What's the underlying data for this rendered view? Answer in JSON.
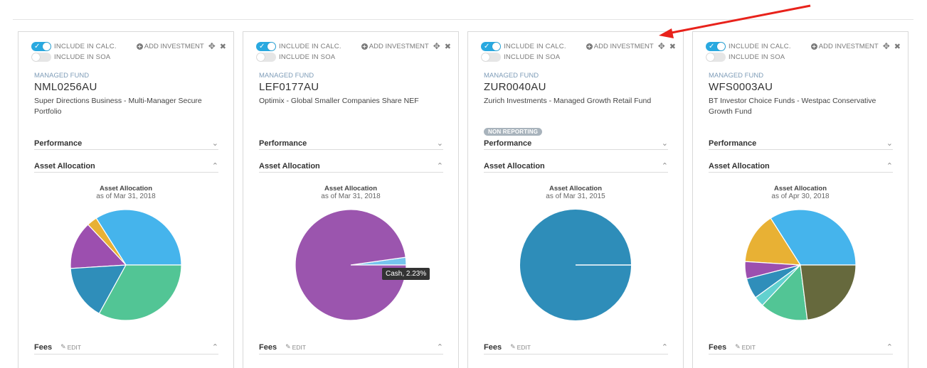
{
  "labels": {
    "include_calc": "INCLUDE IN CALC.",
    "include_soa": "INCLUDE IN SOA",
    "add_investment": "ADD INVESTMENT",
    "performance": "Performance",
    "asset_allocation": "Asset Allocation",
    "fees": "Fees",
    "edit": "EDIT",
    "chart_title": "Asset Allocation"
  },
  "icons": {
    "add": "plus-circle-icon",
    "move": "move-icon",
    "close": "close-icon",
    "chevron_down": "chevron-down-icon",
    "chevron_up": "chevron-up-icon",
    "pencil": "pencil-icon"
  },
  "colors": {
    "toggle_on": "#29a9e0",
    "toggle_off": "#e6e6e6",
    "annotation_arrow": "#e8221b"
  },
  "cards": [
    {
      "include_calc": true,
      "include_soa": false,
      "fund_type": "MANAGED FUND",
      "code": "NML0256AU",
      "name": "Super Directions Business - Multi-Manager Secure Portfolio",
      "badge": "",
      "performance_expanded": false,
      "allocation_expanded": true,
      "as_of": "as of Mar 31, 2018",
      "slices": [
        {
          "value": 34,
          "color": "#45b4ec"
        },
        {
          "value": 3,
          "color": "#e8b134"
        },
        {
          "value": 14,
          "color": "#9c4faf"
        },
        {
          "value": 16,
          "color": "#2f8eba"
        },
        {
          "value": 33,
          "color": "#52c595"
        }
      ]
    },
    {
      "include_calc": true,
      "include_soa": false,
      "fund_type": "MANAGED FUND",
      "code": "LEF0177AU",
      "name": "Optimix - Global Smaller Companies Share NEF",
      "badge": "",
      "performance_expanded": false,
      "allocation_expanded": true,
      "as_of": "as of Mar 31, 2018",
      "tooltip": "Cash, 2.23%",
      "slices": [
        {
          "value": 2.23,
          "color": "#76c4ee"
        },
        {
          "value": 97.77,
          "color": "#9b55ae"
        }
      ]
    },
    {
      "include_calc": true,
      "include_soa": false,
      "fund_type": "MANAGED FUND",
      "code": "ZUR0040AU",
      "name": "Zurich Investments - Managed Growth Retail Fund",
      "badge": "NON REPORTING",
      "performance_expanded": false,
      "allocation_expanded": true,
      "as_of": "as of Mar 31, 2015",
      "slices": [
        {
          "value": 100,
          "color": "#2e8db9"
        }
      ]
    },
    {
      "include_calc": true,
      "include_soa": false,
      "fund_type": "MANAGED FUND",
      "code": "WFS0003AU",
      "name": "BT Investor Choice Funds - Westpac Conservative Growth Fund",
      "badge": "",
      "performance_expanded": false,
      "allocation_expanded": true,
      "as_of": "as of Apr 30, 2018",
      "slices": [
        {
          "value": 34,
          "color": "#45b4ec"
        },
        {
          "value": 15,
          "color": "#e8b134"
        },
        {
          "value": 5,
          "color": "#9c4faf"
        },
        {
          "value": 6,
          "color": "#2f8eba"
        },
        {
          "value": 3,
          "color": "#62d1cf"
        },
        {
          "value": 14,
          "color": "#52c595"
        },
        {
          "value": 23,
          "color": "#66693d"
        }
      ]
    }
  ]
}
